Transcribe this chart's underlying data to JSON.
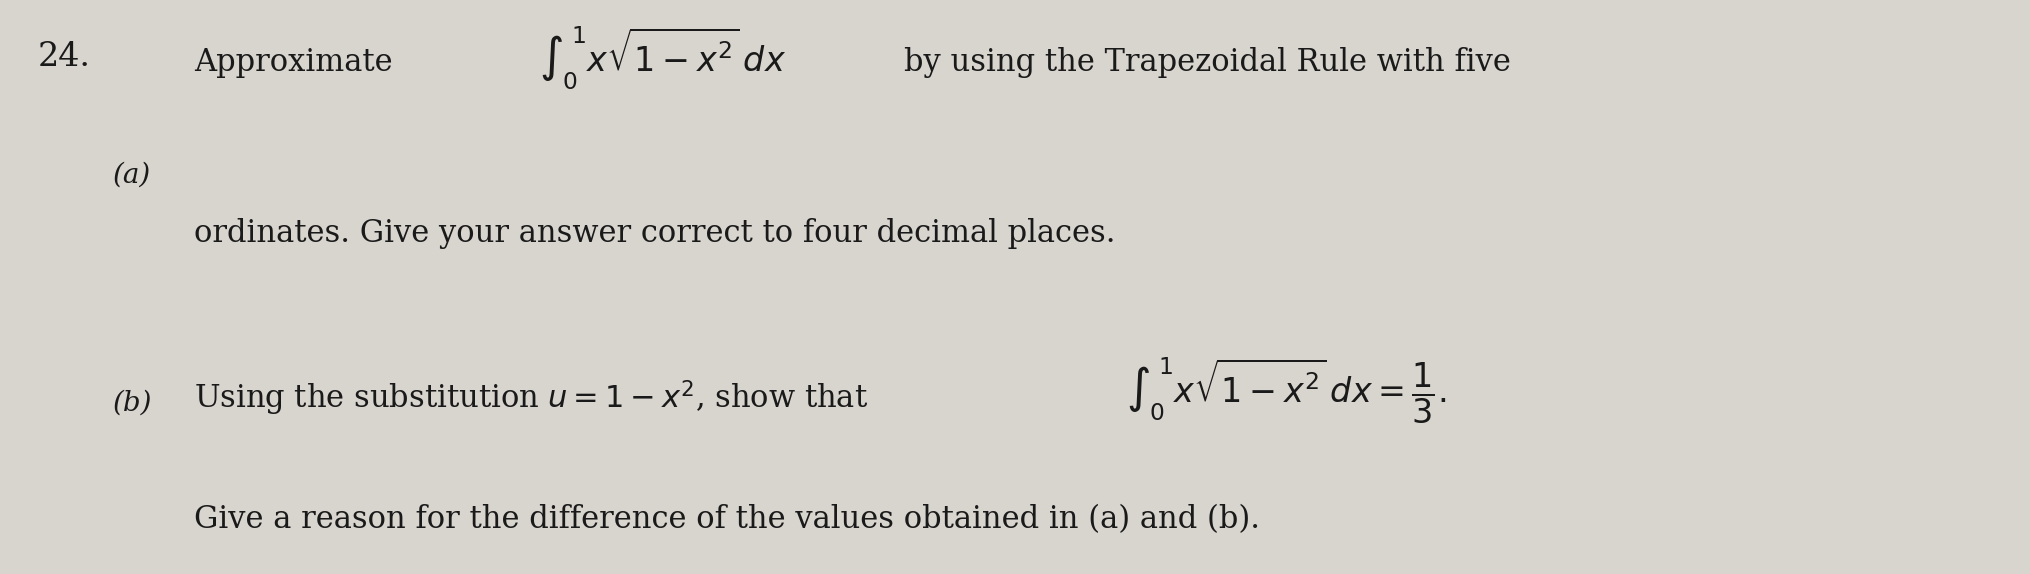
{
  "background_color": "#d8d4ce",
  "fig_width": 20.3,
  "fig_height": 5.74,
  "question_number": "24.",
  "part_a_label": "(a)",
  "part_b_label": "(b)",
  "line1_prefix": "Approximate",
  "line1_suffix": " by using the Trapezoidal Rule with five",
  "line2": "ordinates. Give your answer correct to four decimal places.",
  "line3_prefix": "Using the substitution ",
  "line3_u_eq": "u",
  "line3_middle": " = 1 − x², show that",
  "line3_suffix": "",
  "line4": "Give a reason for the difference of the values obtained in (a) and (b).",
  "font_size_main": 22,
  "font_size_number": 24,
  "font_size_label": 20,
  "text_color": "#1a1a1a"
}
